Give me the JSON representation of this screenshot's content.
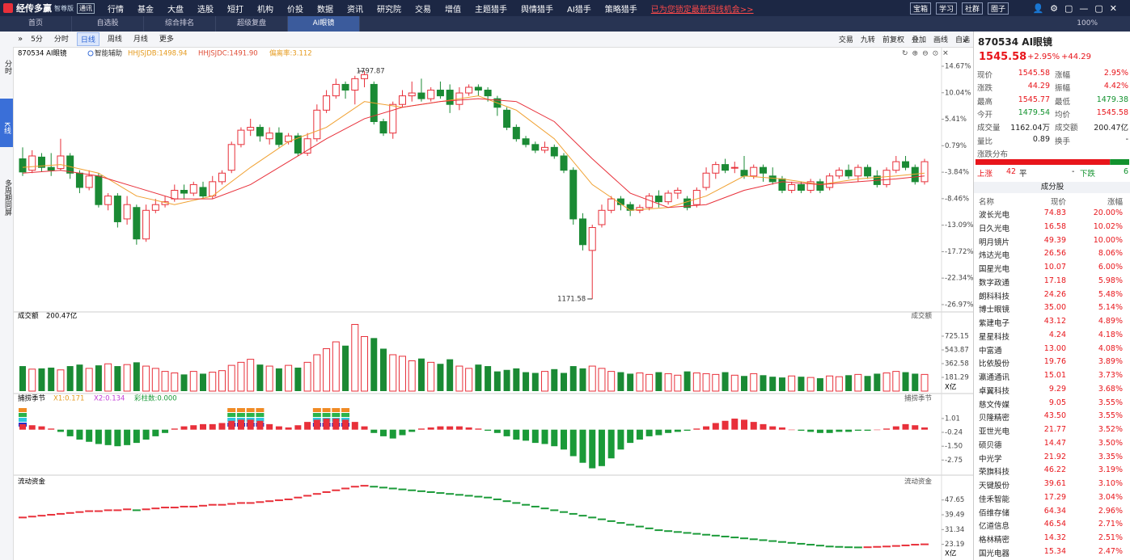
{
  "top_bar": {
    "logo": "经传多赢",
    "edition": "智尊版",
    "badge": "通讯",
    "menu": [
      "行情",
      "基金",
      "大盘",
      "选股",
      "短打",
      "机构",
      "价投",
      "数据",
      "资讯",
      "研究院",
      "交易",
      "增值",
      "主题猎手",
      "舆情猎手",
      "AI猎手",
      "策略猎手"
    ],
    "promo": "已为您锁定最新短线机会>>",
    "buttons": [
      "宝箱",
      "学习",
      "社群",
      "圈子"
    ]
  },
  "tabs": {
    "items": [
      "首页",
      "自选股",
      "综合排名",
      "超级复盘",
      "AI眼镜"
    ],
    "active": 4,
    "zoom": "100%"
  },
  "toolbar": {
    "periods": [
      "5分",
      "分时",
      "日线",
      "周线",
      "月线",
      "更多"
    ],
    "active": 2,
    "tools": [
      "交易",
      "九转",
      "前复权",
      "叠加",
      "画线",
      "自选"
    ]
  },
  "side_tabs": [
    "分时",
    "K线",
    "多周期同屏"
  ],
  "chart_header": {
    "name": "870534 AI眼镜",
    "assist": "智能辅助",
    "indicators": [
      "HHJSJDB:1498.94",
      "HHJSJDC:1491.90",
      "偏离率:3.112"
    ]
  },
  "chart_data": [
    {
      "type": "candlestick",
      "up_color": "#e8303a",
      "down_color": "#1a8a34",
      "ylim": [
        -27.68,
        16.36
      ],
      "yticks": [
        {
          "value": 14.67,
          "label": "14.67%"
        },
        {
          "value": 10.04,
          "label": "10.04%"
        },
        {
          "value": 5.41,
          "label": "5.41%"
        },
        {
          "value": 0.79,
          "label": "0.79%"
        },
        {
          "value": -3.84,
          "label": "-3.84%"
        },
        {
          "value": -8.46,
          "label": "-8.46%"
        },
        {
          "value": -13.09,
          "label": "-13.09%"
        },
        {
          "value": -17.72,
          "label": "-17.72%"
        },
        {
          "value": -22.34,
          "label": "-22.34%"
        },
        {
          "value": -26.97,
          "label": "-26.97%"
        }
      ],
      "candles": [
        [
          -1.5,
          -3.8,
          0.5,
          -4.5
        ],
        [
          -3.5,
          -1.0,
          0.0,
          -4.0
        ],
        [
          -1.2,
          -3.0,
          -0.5,
          -3.8
        ],
        [
          -3.0,
          -3.5,
          -0.5,
          -4.5
        ],
        [
          -3.2,
          -1.0,
          2.0,
          -3.5
        ],
        [
          -1.0,
          -4.0,
          -0.5,
          -5.0
        ],
        [
          -4.0,
          -6.5,
          -3.5,
          -7.5
        ],
        [
          -6.5,
          -4.5,
          -3.5,
          -7.0
        ],
        [
          -4.5,
          -9.5,
          -4.0,
          -10.0
        ],
        [
          -9.5,
          -8.0,
          -7.5,
          -10.5
        ],
        [
          -8.0,
          -12.5,
          -7.5,
          -13.5
        ],
        [
          -12.0,
          -9.5,
          -8.0,
          -13.0
        ],
        [
          -10.0,
          -15.5,
          -9.5,
          -16.5
        ],
        [
          -15.5,
          -10.5,
          -9.5,
          -16.0
        ],
        [
          -10.5,
          -9.5,
          -8.5,
          -11.0
        ],
        [
          -9.5,
          -9.0,
          -8.0,
          -10.0
        ],
        [
          -8.5,
          -7.0,
          -6.0,
          -9.0
        ],
        [
          -7.0,
          -7.5,
          -6.0,
          -8.5
        ],
        [
          -7.5,
          -6.0,
          -5.5,
          -8.0
        ],
        [
          -6.5,
          -8.0,
          -5.5,
          -8.5
        ],
        [
          -8.0,
          -5.5,
          -4.5,
          -8.5
        ],
        [
          -5.5,
          -4.0,
          -3.5,
          -6.0
        ],
        [
          -3.5,
          1.0,
          1.5,
          -4.0
        ],
        [
          1.0,
          3.5,
          4.0,
          0.5
        ],
        [
          3.5,
          4.0,
          5.5,
          2.5
        ],
        [
          4.0,
          2.5,
          4.5,
          1.5
        ],
        [
          2.0,
          3.0,
          4.0,
          1.0
        ],
        [
          3.0,
          1.0,
          4.0,
          0.5
        ],
        [
          1.5,
          2.5,
          3.0,
          1.0
        ],
        [
          2.5,
          -0.5,
          3.0,
          -1.0
        ],
        [
          -0.5,
          2.0,
          3.0,
          -1.0
        ],
        [
          2.0,
          7.0,
          8.0,
          1.5
        ],
        [
          7.0,
          9.5,
          10.5,
          6.5
        ],
        [
          9.5,
          11.5,
          12.5,
          9.0
        ],
        [
          11.5,
          10.5,
          12.0,
          9.0
        ],
        [
          10.5,
          12.5,
          13.0,
          8.0
        ],
        [
          12.5,
          13.2,
          13.82,
          11.0
        ],
        [
          11.5,
          5.0,
          12.0,
          4.5
        ],
        [
          5.0,
          3.0,
          5.5,
          2.5
        ],
        [
          3.0,
          8.0,
          8.5,
          2.0
        ],
        [
          8.0,
          9.5,
          10.5,
          7.5
        ],
        [
          9.5,
          10.0,
          12.0,
          8.5
        ],
        [
          10.0,
          9.0,
          12.5,
          8.5
        ],
        [
          9.0,
          10.5,
          11.0,
          8.5
        ],
        [
          10.5,
          9.5,
          12.0,
          9.0
        ],
        [
          10.5,
          8.0,
          11.5,
          6.5
        ],
        [
          8.0,
          10.0,
          11.0,
          7.0
        ],
        [
          10.0,
          11.0,
          11.5,
          9.5
        ],
        [
          11.0,
          10.5,
          11.5,
          9.5
        ],
        [
          10.5,
          9.5,
          11.0,
          8.5
        ],
        [
          9.0,
          7.5,
          9.5,
          6.0
        ],
        [
          7.0,
          4.0,
          7.5,
          3.5
        ],
        [
          4.0,
          2.0,
          4.5,
          1.5
        ],
        [
          2.0,
          1.0,
          2.5,
          0.5
        ],
        [
          1.0,
          0.0,
          1.5,
          -0.5
        ],
        [
          0.0,
          0.5,
          1.5,
          -0.5
        ],
        [
          0.5,
          -1.0,
          1.0,
          -1.5
        ],
        [
          -1.0,
          -3.5,
          -0.5,
          -4.0
        ],
        [
          -3.5,
          -12.0,
          -3.0,
          -13.0
        ],
        [
          -12.0,
          -16.5,
          -11.0,
          -17.5
        ],
        [
          -17.5,
          -13.5,
          -13.0,
          -25.98
        ],
        [
          -13.0,
          -10.5,
          -9.5,
          -13.5
        ],
        [
          -10.5,
          -8.5,
          -8.0,
          -11.0
        ],
        [
          -8.5,
          -9.5,
          -8.0,
          -10.5
        ],
        [
          -9.5,
          -10.5,
          -9.0,
          -11.5
        ],
        [
          -10.5,
          -10.0,
          -9.5,
          -11.0
        ],
        [
          -10.0,
          -8.0,
          -7.5,
          -10.5
        ],
        [
          -8.0,
          -9.0,
          -7.0,
          -10.0
        ],
        [
          -9.0,
          -7.5,
          -7.0,
          -9.5
        ],
        [
          -7.5,
          -7.0,
          -6.5,
          -8.5
        ],
        [
          -8.5,
          -10.0,
          -8.0,
          -10.5
        ],
        [
          -9.5,
          -7.0,
          -6.5,
          -10.0
        ],
        [
          -6.5,
          -4.0,
          -3.0,
          -7.0
        ],
        [
          -4.0,
          -2.5,
          -2.0,
          -5.0
        ],
        [
          -2.5,
          -3.5,
          -1.5,
          -4.0
        ],
        [
          -3.0,
          -3.0,
          -2.0,
          -4.0
        ],
        [
          -3.5,
          -4.5,
          -1.0,
          -5.0
        ],
        [
          -4.5,
          -3.0,
          -2.5,
          -5.0
        ],
        [
          -3.0,
          -4.0,
          -2.5,
          -5.5
        ],
        [
          -4.5,
          -5.5,
          -3.0,
          -6.0
        ],
        [
          -5.0,
          -7.0,
          -4.5,
          -7.5
        ],
        [
          -7.0,
          -6.0,
          -5.5,
          -7.5
        ],
        [
          -6.0,
          -7.0,
          -5.5,
          -7.5
        ],
        [
          -7.0,
          -5.5,
          -5.0,
          -7.5
        ],
        [
          -5.5,
          -7.0,
          -5.0,
          -7.5
        ],
        [
          -6.5,
          -4.5,
          -4.0,
          -7.0
        ],
        [
          -4.5,
          -3.5,
          -3.0,
          -5.0
        ],
        [
          -3.5,
          -4.5,
          -2.5,
          -5.0
        ],
        [
          -4.5,
          -3.0,
          -2.5,
          -5.5
        ],
        [
          -3.0,
          -4.5,
          -2.5,
          -5.0
        ],
        [
          -4.5,
          -6.0,
          -3.5,
          -6.5
        ],
        [
          -6.0,
          -3.5,
          -3.0,
          -6.5
        ],
        [
          -3.5,
          -2.0,
          -1.0,
          -4.0
        ],
        [
          -2.0,
          -3.0,
          -1.0,
          -3.5
        ],
        [
          -3.0,
          -5.5,
          -2.5,
          -6.0
        ],
        [
          -5.5,
          -2.0,
          -1.5,
          -6.0
        ]
      ],
      "series": [
        {
          "color": "#f0a030",
          "x": [
            0,
            4,
            8,
            12,
            16,
            20,
            24,
            28,
            32,
            36,
            40,
            44,
            48,
            52,
            56,
            60,
            64,
            68,
            72,
            76,
            80,
            84,
            88,
            92,
            95
          ],
          "values": [
            -3.0,
            -2.5,
            -4.0,
            -8.0,
            -9.5,
            -8.0,
            -3.0,
            1.5,
            4.0,
            8.5,
            7.5,
            8.5,
            9.5,
            7.0,
            2.0,
            -6.0,
            -10.5,
            -10.0,
            -8.0,
            -4.5,
            -5.0,
            -6.0,
            -5.0,
            -4.5,
            -4.0
          ]
        },
        {
          "color": "#e8303a",
          "x": [
            0,
            4,
            8,
            12,
            16,
            20,
            24,
            28,
            32,
            36,
            40,
            44,
            48,
            52,
            56,
            60,
            64,
            68,
            72,
            76,
            80,
            84,
            88,
            92,
            95
          ],
          "values": [
            -4.0,
            -3.5,
            -4.5,
            -6.5,
            -8.5,
            -8.5,
            -6.0,
            -2.0,
            2.0,
            5.5,
            7.5,
            8.5,
            9.0,
            8.5,
            5.0,
            -1.5,
            -7.5,
            -10.0,
            -9.5,
            -7.0,
            -5.5,
            -6.0,
            -5.5,
            -5.0,
            -4.5
          ]
        }
      ],
      "annotations": [
        {
          "text": "1797.87",
          "candle": 36
        },
        {
          "text": "1171.58",
          "candle": 60
        }
      ]
    },
    {
      "type": "bar",
      "label": "成交额",
      "value_text": "200.47亿",
      "unit": "X亿",
      "ylim": [
        0,
        949
      ],
      "yticks": [
        725.15,
        543.87,
        362.58,
        181.29
      ],
      "values": [
        330,
        290,
        300,
        310,
        280,
        330,
        350,
        300,
        340,
        360,
        330,
        350,
        380,
        330,
        300,
        260,
        240,
        220,
        260,
        230,
        250,
        270,
        340,
        380,
        420,
        350,
        330,
        300,
        340,
        310,
        380,
        480,
        560,
        650,
        600,
        880,
        720,
        700,
        560,
        480,
        460,
        400,
        430,
        380,
        360,
        420,
        330,
        300,
        350,
        330,
        260,
        280,
        300,
        250,
        240,
        260,
        290,
        240,
        330,
        300,
        330,
        300,
        260,
        250,
        230,
        240,
        220,
        250,
        230,
        210,
        260,
        240,
        230,
        220,
        250,
        210,
        200,
        230,
        210,
        190,
        180,
        200,
        190,
        180,
        170,
        200,
        190,
        210,
        220,
        200,
        230,
        240,
        260,
        250,
        230,
        220
      ]
    },
    {
      "type": "bar",
      "label": "捕捞季节",
      "indicators": [
        "X1:0.171",
        "X2:0.134",
        "彩柱数:0.000"
      ],
      "pos_color": "#e8303a",
      "neg_color": "#1a9a38",
      "ylim": [
        -3.9,
        2.1
      ],
      "yticks": [
        1.01,
        -0.24,
        {
          "value": -1.5,
          "label": "-1.50"
        },
        -2.75
      ],
      "highlight": [
        0,
        22,
        23,
        24,
        25,
        31,
        32,
        33,
        34
      ],
      "values": [
        0.5,
        0.4,
        0.3,
        0.1,
        -0.2,
        -0.6,
        -0.9,
        -1.1,
        -1.3,
        -1.4,
        -1.5,
        -1.4,
        -1.2,
        -0.9,
        -0.6,
        -0.3,
        0.1,
        0.3,
        0.4,
        0.5,
        0.5,
        0.6,
        0.8,
        0.9,
        0.9,
        0.8,
        0.5,
        0.3,
        0.2,
        0.4,
        0.7,
        0.9,
        1.0,
        1.0,
        0.9,
        0.7,
        0.3,
        -0.3,
        -0.6,
        -0.8,
        -0.5,
        -0.2,
        0.1,
        0.2,
        0.3,
        0.3,
        0.3,
        0.2,
        0.1,
        -0.1,
        -0.3,
        -0.6,
        -0.9,
        -1.0,
        -1.2,
        -1.3,
        -1.5,
        -1.8,
        -2.4,
        -3.0,
        -3.5,
        -3.3,
        -2.6,
        -1.8,
        -1.2,
        -0.9,
        -0.6,
        -0.5,
        -0.3,
        -0.2,
        -0.1,
        0.1,
        0.3,
        0.6,
        0.8,
        1.0,
        0.9,
        0.7,
        0.5,
        0.3,
        0.2,
        0.0,
        -0.1,
        -0.2,
        -0.3,
        -0.3,
        -0.2,
        -0.2,
        -0.1,
        -0.1,
        0.0,
        0.1,
        0.3,
        0.5,
        0.4,
        0.2
      ]
    },
    {
      "type": "dash",
      "label": "流动资金",
      "unit": "X亿",
      "up_color": "#e8303a",
      "down_color": "#1a9a38",
      "ylim": [
        15,
        56
      ],
      "yticks": [
        47.65,
        39.49,
        31.34,
        23.19
      ],
      "values": [
        38,
        38.5,
        39,
        39.5,
        40,
        40.5,
        41,
        41.5,
        41.5,
        42,
        42,
        42.5,
        42,
        42.5,
        43,
        43.5,
        43.5,
        44,
        44,
        44.5,
        45,
        45,
        45.5,
        46,
        46,
        46.5,
        47,
        47.5,
        48,
        49,
        50,
        51,
        52,
        53,
        54,
        55,
        55.5,
        55,
        54.5,
        54,
        53.5,
        53,
        52.5,
        52,
        51.5,
        51,
        50.5,
        50,
        49.5,
        49,
        48,
        47,
        46,
        45,
        44,
        43,
        42,
        41,
        40,
        39,
        38,
        37,
        36,
        35,
        34,
        33,
        32,
        31,
        30.5,
        30,
        29.5,
        29,
        28.5,
        28,
        27.5,
        27,
        26.5,
        26,
        25.5,
        25,
        24.5,
        24,
        23.5,
        23,
        22.5,
        22,
        21.8,
        21.6,
        21.5,
        21.6,
        21.8,
        22,
        22.3,
        22.6,
        23,
        23.2
      ]
    }
  ],
  "quote": {
    "title": "870534 AI眼镜",
    "price": "1545.58",
    "change_pct": "+2.95%",
    "change": "+44.29",
    "rows": [
      [
        "现价",
        "1545.58",
        "涨幅",
        "2.95%"
      ],
      [
        "涨跌",
        "44.29",
        "振幅",
        "4.42%"
      ],
      [
        "最高",
        "1545.77",
        "最低",
        "1479.38"
      ],
      [
        "今开",
        "1479.54",
        "均价",
        "1545.58"
      ],
      [
        "成交量",
        "1162.04万",
        "成交额",
        "200.47亿"
      ],
      [
        "量比",
        "0.89",
        "换手",
        "-"
      ]
    ],
    "distribution": {
      "title": "涨跌分布",
      "up_label": "上涨",
      "up": 42,
      "flat_label": "平",
      "flat": "-",
      "down_label": "下跌",
      "down": 6
    },
    "constituents": {
      "title": "成分股",
      "columns": [
        "名称",
        "现价",
        "涨幅"
      ],
      "rows": [
        [
          "波长光电",
          "74.83",
          "20.00%"
        ],
        [
          "日久光电",
          "16.58",
          "10.02%"
        ],
        [
          "明月镜片",
          "49.39",
          "10.00%"
        ],
        [
          "炜达光电",
          "26.56",
          "8.06%"
        ],
        [
          "国星光电",
          "10.07",
          "6.00%"
        ],
        [
          "数字政通",
          "17.18",
          "5.98%"
        ],
        [
          "朗科科技",
          "24.26",
          "5.48%"
        ],
        [
          "博士眼镜",
          "35.00",
          "5.14%"
        ],
        [
          "紫建电子",
          "43.12",
          "4.89%"
        ],
        [
          "星星科技",
          "4.24",
          "4.18%"
        ],
        [
          "中富通",
          "13.00",
          "4.08%"
        ],
        [
          "比依股份",
          "19.76",
          "3.89%"
        ],
        [
          "瀛通通讯",
          "15.01",
          "3.73%"
        ],
        [
          "卓翼科技",
          "9.29",
          "3.68%"
        ],
        [
          "慈文传媒",
          "9.05",
          "3.55%"
        ],
        [
          "贝隆精密",
          "43.50",
          "3.55%"
        ],
        [
          "亚世光电",
          "21.77",
          "3.52%"
        ],
        [
          "硕贝德",
          "14.47",
          "3.50%"
        ],
        [
          "中光学",
          "21.92",
          "3.35%"
        ],
        [
          "荣旗科技",
          "46.22",
          "3.19%"
        ],
        [
          "天键股份",
          "39.61",
          "3.10%"
        ],
        [
          "佳禾智能",
          "17.29",
          "3.04%"
        ],
        [
          "佰维存储",
          "64.34",
          "2.96%"
        ],
        [
          "亿道信息",
          "46.54",
          "2.71%"
        ],
        [
          "格林精密",
          "14.32",
          "2.51%"
        ],
        [
          "国光电器",
          "15.34",
          "2.47%"
        ]
      ]
    }
  }
}
